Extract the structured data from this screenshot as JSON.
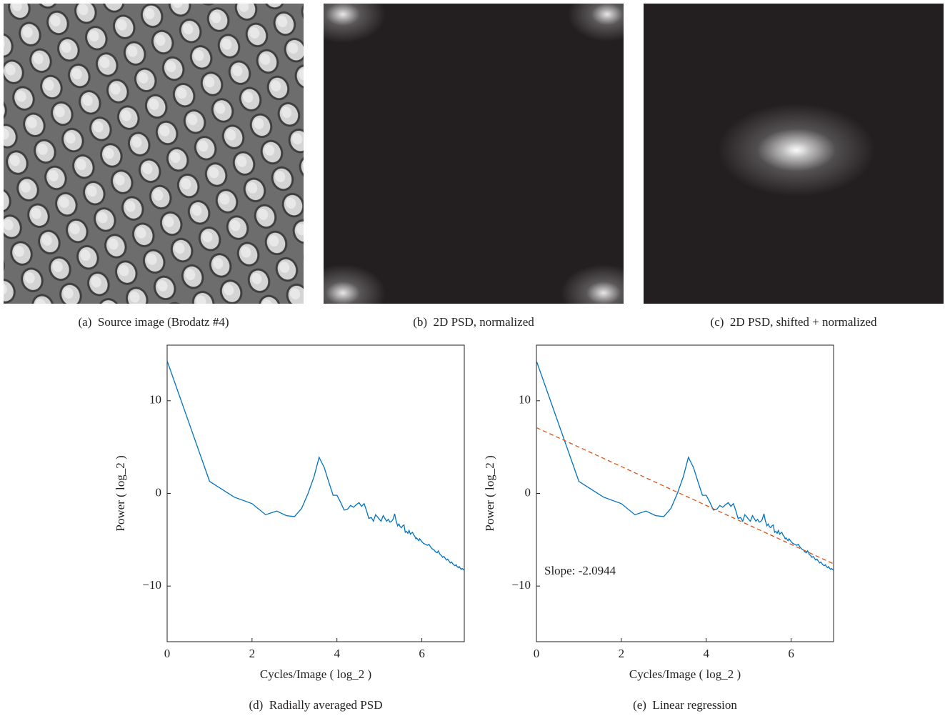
{
  "panels": [
    {
      "caption": "(a)  Source image (Brodatz #4)"
    },
    {
      "caption": "(b)  2D PSD, normalized"
    },
    {
      "caption": "(c)  2D PSD, shifted + normalized"
    }
  ],
  "chart_data": [
    {
      "type": "line",
      "caption": "(d)  Radially averaged PSD",
      "xlabel": "Cycles/Image ( log_2 )",
      "ylabel": "Power ( log_2 )",
      "xlim": [
        0,
        7
      ],
      "ylim": [
        -16,
        16
      ],
      "xticks": [
        0,
        2,
        4,
        6
      ],
      "yticks": [
        {
          "value": -10,
          "label": "−10"
        },
        0,
        10
      ],
      "series": [
        {
          "color": "#0072bd",
          "dashed": false,
          "x": [
            0,
            1,
            1.58,
            2,
            2.32,
            2.58,
            2.81,
            3,
            3.17,
            3.32,
            3.46,
            3.58,
            3.7,
            3.81,
            3.91,
            4,
            4.09,
            4.17,
            4.25,
            4.32,
            4.39,
            4.46,
            4.52,
            4.58,
            4.64,
            4.7,
            4.75,
            4.81,
            4.86,
            4.91,
            4.95,
            5,
            5.04,
            5.09,
            5.13,
            5.17,
            5.21,
            5.25,
            5.29,
            5.32,
            5.36,
            5.39,
            5.43,
            5.46,
            5.49,
            5.52,
            5.55,
            5.58,
            5.61,
            5.64,
            5.67,
            5.7,
            5.73,
            5.75,
            5.78,
            5.81,
            5.83,
            5.86,
            5.88,
            5.91,
            5.93,
            5.95,
            6,
            6.04,
            6.09,
            6.13,
            6.17,
            6.21,
            6.25,
            6.29,
            6.32,
            6.36,
            6.39,
            6.43,
            6.46,
            6.49,
            6.52,
            6.55,
            6.58,
            6.61,
            6.64,
            6.67,
            6.7,
            6.73,
            6.75,
            6.78,
            6.81,
            6.83,
            6.86,
            6.88,
            6.91,
            6.93,
            6.95,
            7
          ],
          "values": [
            14.3,
            1.3,
            -0.4,
            -1.1,
            -2.3,
            -1.9,
            -2.4,
            -2.5,
            -1.6,
            0,
            1.8,
            3.9,
            2.8,
            1.2,
            -0.2,
            -0.2,
            -1.0,
            -1.8,
            -1.7,
            -1.3,
            -1.5,
            -1.2,
            -1.0,
            -1.4,
            -1.1,
            -1.9,
            -2.7,
            -2.6,
            -3.0,
            -2.3,
            -2.5,
            -2.8,
            -3.0,
            -2.4,
            -2.7,
            -3.0,
            -2.8,
            -3.1,
            -3.0,
            -2.8,
            -2.2,
            -2.9,
            -3.5,
            -3.3,
            -3.6,
            -3.7,
            -3.5,
            -3.4,
            -4.2,
            -4.1,
            -4.3,
            -4.0,
            -4.4,
            -4.3,
            -4.2,
            -4.5,
            -4.6,
            -4.9,
            -4.8,
            -5.0,
            -5.1,
            -4.9,
            -5.2,
            -5.4,
            -5.5,
            -5.6,
            -5.5,
            -5.8,
            -6.0,
            -6.1,
            -6.3,
            -6.4,
            -6.2,
            -6.6,
            -6.7,
            -6.9,
            -6.8,
            -7.0,
            -7.2,
            -7.1,
            -7.3,
            -7.5,
            -7.4,
            -7.6,
            -7.7,
            -7.8,
            -7.7,
            -7.9,
            -8.0,
            -7.9,
            -8.1,
            -8.2,
            -8.1,
            -8.3
          ]
        }
      ]
    },
    {
      "type": "line",
      "caption": "(e)  Linear regression",
      "xlabel": "Cycles/Image ( log_2 )",
      "ylabel": "Power ( log_2 )",
      "annotation": "Slope: -2.0944",
      "xlim": [
        0,
        7
      ],
      "ylim": [
        -16,
        16
      ],
      "xticks": [
        0,
        2,
        4,
        6
      ],
      "yticks": [
        {
          "value": -10,
          "label": "−10"
        },
        0,
        10
      ],
      "series": [
        {
          "color": "#0072bd",
          "dashed": false,
          "x": [
            0,
            1,
            1.58,
            2,
            2.32,
            2.58,
            2.81,
            3,
            3.17,
            3.32,
            3.46,
            3.58,
            3.7,
            3.81,
            3.91,
            4,
            4.09,
            4.17,
            4.25,
            4.32,
            4.39,
            4.46,
            4.52,
            4.58,
            4.64,
            4.7,
            4.75,
            4.81,
            4.86,
            4.91,
            4.95,
            5,
            5.04,
            5.09,
            5.13,
            5.17,
            5.21,
            5.25,
            5.29,
            5.32,
            5.36,
            5.39,
            5.43,
            5.46,
            5.49,
            5.52,
            5.55,
            5.58,
            5.61,
            5.64,
            5.67,
            5.7,
            5.73,
            5.75,
            5.78,
            5.81,
            5.83,
            5.86,
            5.88,
            5.91,
            5.93,
            5.95,
            6,
            6.04,
            6.09,
            6.13,
            6.17,
            6.21,
            6.25,
            6.29,
            6.32,
            6.36,
            6.39,
            6.43,
            6.46,
            6.49,
            6.52,
            6.55,
            6.58,
            6.61,
            6.64,
            6.67,
            6.7,
            6.73,
            6.75,
            6.78,
            6.81,
            6.83,
            6.86,
            6.88,
            6.91,
            6.93,
            6.95,
            7
          ],
          "values": [
            14.3,
            1.3,
            -0.4,
            -1.1,
            -2.3,
            -1.9,
            -2.4,
            -2.5,
            -1.6,
            0,
            1.8,
            3.9,
            2.8,
            1.2,
            -0.2,
            -0.2,
            -1.0,
            -1.8,
            -1.7,
            -1.3,
            -1.5,
            -1.2,
            -1.0,
            -1.4,
            -1.1,
            -1.9,
            -2.7,
            -2.6,
            -3.0,
            -2.3,
            -2.5,
            -2.8,
            -3.0,
            -2.4,
            -2.7,
            -3.0,
            -2.8,
            -3.1,
            -3.0,
            -2.8,
            -2.2,
            -2.9,
            -3.5,
            -3.3,
            -3.6,
            -3.7,
            -3.5,
            -3.4,
            -4.2,
            -4.1,
            -4.3,
            -4.0,
            -4.4,
            -4.3,
            -4.2,
            -4.5,
            -4.6,
            -4.9,
            -4.8,
            -5.0,
            -5.1,
            -4.9,
            -5.2,
            -5.4,
            -5.5,
            -5.6,
            -5.5,
            -5.8,
            -6.0,
            -6.1,
            -6.3,
            -6.4,
            -6.2,
            -6.6,
            -6.7,
            -6.9,
            -6.8,
            -7.0,
            -7.2,
            -7.1,
            -7.3,
            -7.5,
            -7.4,
            -7.6,
            -7.7,
            -7.8,
            -7.7,
            -7.9,
            -8.0,
            -7.9,
            -8.1,
            -8.2,
            -8.1,
            -8.3
          ]
        },
        {
          "color": "#d95319",
          "dashed": true,
          "x": [
            0,
            7
          ],
          "values": [
            7.1,
            -7.6
          ]
        }
      ]
    }
  ]
}
